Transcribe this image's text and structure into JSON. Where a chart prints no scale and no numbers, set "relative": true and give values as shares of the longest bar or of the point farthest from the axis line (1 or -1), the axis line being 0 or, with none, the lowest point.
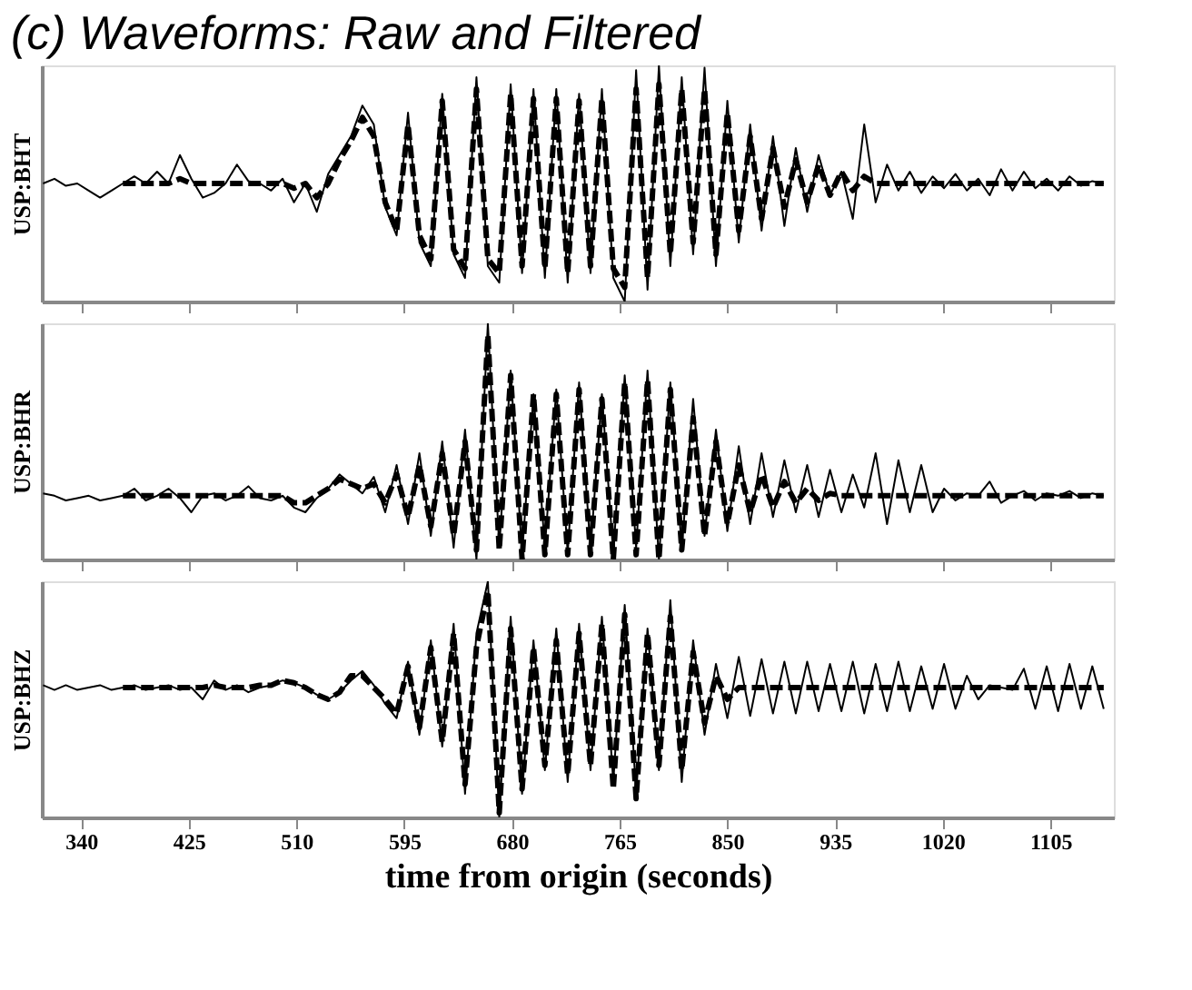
{
  "chart_data": [
    {
      "type": "line",
      "relative": true,
      "title": "(c) Waveforms: Raw and Filtered",
      "ylabel": "USP:BHT",
      "tick_labels": false,
      "xlim": [
        309,
        1155
      ],
      "xticks": [
        340,
        425,
        510,
        595,
        680,
        765,
        850,
        935,
        1020,
        1105
      ],
      "x": [
        310,
        319,
        328,
        337,
        346,
        355,
        364,
        373,
        382,
        391,
        400,
        409,
        418,
        427,
        436,
        445,
        454,
        463,
        472,
        481,
        490,
        499,
        508,
        517,
        526,
        535,
        544,
        553,
        562,
        571,
        580,
        589,
        598,
        607,
        616,
        625,
        634,
        643,
        652,
        661,
        670,
        679,
        688,
        697,
        706,
        715,
        724,
        733,
        742,
        751,
        760,
        769,
        778,
        787,
        796,
        805,
        814,
        823,
        832,
        841,
        850,
        859,
        868,
        877,
        886,
        895,
        904,
        913,
        922,
        931,
        940,
        949,
        958,
        967,
        976,
        985,
        994,
        1003,
        1012,
        1021,
        1030,
        1039,
        1048,
        1057,
        1066,
        1075,
        1084,
        1093,
        1102,
        1111,
        1120,
        1129,
        1138,
        1147
      ],
      "series": [
        {
          "color": "#000000",
          "line_style": "solid",
          "values": [
            0.5,
            0.52,
            0.49,
            0.5,
            0.47,
            0.44,
            0.47,
            0.5,
            0.53,
            0.5,
            0.55,
            0.5,
            0.62,
            0.52,
            0.44,
            0.46,
            0.5,
            0.58,
            0.51,
            0.5,
            0.47,
            0.52,
            0.42,
            0.5,
            0.38,
            0.54,
            0.62,
            0.7,
            0.83,
            0.75,
            0.4,
            0.28,
            0.8,
            0.25,
            0.15,
            0.88,
            0.2,
            0.1,
            0.95,
            0.15,
            0.08,
            0.92,
            0.12,
            0.9,
            0.1,
            0.9,
            0.08,
            0.88,
            0.12,
            0.9,
            0.1,
            0,
            0.98,
            0.05,
            1,
            0.15,
            0.95,
            0.2,
            0.99,
            0.15,
            0.85,
            0.25,
            0.75,
            0.3,
            0.7,
            0.32,
            0.65,
            0.38,
            0.62,
            0.45,
            0.55,
            0.35,
            0.75,
            0.42,
            0.58,
            0.47,
            0.55,
            0.46,
            0.53,
            0.48,
            0.54,
            0.47,
            0.52,
            0.45,
            0.56,
            0.47,
            0.55,
            0.48,
            0.52,
            0.47,
            0.53,
            0.49,
            0.51,
            0.5
          ]
        },
        {
          "color": "#000000",
          "line_style": "dashed",
          "values": [
            null,
            null,
            null,
            null,
            null,
            null,
            null,
            0.5,
            0.5,
            0.5,
            0.5,
            0.5,
            0.52,
            0.5,
            0.5,
            0.5,
            0.5,
            0.5,
            0.5,
            0.5,
            0.5,
            0.5,
            0.48,
            0.5,
            0.44,
            0.5,
            0.6,
            0.68,
            0.78,
            0.7,
            0.42,
            0.3,
            0.75,
            0.28,
            0.18,
            0.85,
            0.22,
            0.14,
            0.9,
            0.18,
            0.12,
            0.88,
            0.15,
            0.86,
            0.14,
            0.86,
            0.12,
            0.85,
            0.15,
            0.86,
            0.14,
            0.06,
            0.9,
            0.1,
            0.92,
            0.2,
            0.9,
            0.25,
            0.9,
            0.2,
            0.8,
            0.3,
            0.7,
            0.35,
            0.65,
            0.4,
            0.6,
            0.42,
            0.58,
            0.45,
            0.55,
            0.47,
            0.53,
            0.5,
            0.5,
            0.5,
            0.5,
            0.5,
            0.5,
            0.5,
            0.5,
            0.5,
            0.5,
            0.5,
            0.5,
            0.5,
            0.5,
            0.5,
            0.5,
            0.5,
            0.5,
            0.5,
            0.5,
            0.5
          ]
        }
      ]
    },
    {
      "type": "line",
      "relative": true,
      "ylabel": "USP:BHR",
      "tick_labels": false,
      "xlim": [
        309,
        1155
      ],
      "xticks": [
        340,
        425,
        510,
        595,
        680,
        765,
        850,
        935,
        1020,
        1105
      ],
      "x": [
        310,
        319,
        328,
        337,
        346,
        355,
        364,
        373,
        382,
        391,
        400,
        409,
        418,
        427,
        436,
        445,
        454,
        463,
        472,
        481,
        490,
        499,
        508,
        517,
        526,
        535,
        544,
        553,
        562,
        571,
        580,
        589,
        598,
        607,
        616,
        625,
        634,
        643,
        652,
        661,
        670,
        679,
        688,
        697,
        706,
        715,
        724,
        733,
        742,
        751,
        760,
        769,
        778,
        787,
        796,
        805,
        814,
        823,
        832,
        841,
        850,
        859,
        868,
        877,
        886,
        895,
        904,
        913,
        922,
        931,
        940,
        949,
        958,
        967,
        976,
        985,
        994,
        1003,
        1012,
        1021,
        1030,
        1039,
        1048,
        1057,
        1066,
        1075,
        1084,
        1093,
        1102,
        1111,
        1120,
        1129,
        1138,
        1147
      ],
      "series": [
        {
          "color": "#000000",
          "line_style": "solid",
          "values": [
            0.28,
            0.27,
            0.25,
            0.26,
            0.27,
            0.25,
            0.26,
            0.27,
            0.3,
            0.25,
            0.27,
            0.3,
            0.26,
            0.2,
            0.27,
            0.28,
            0.25,
            0.27,
            0.31,
            0.26,
            0.25,
            0.27,
            0.22,
            0.2,
            0.26,
            0.3,
            0.36,
            0.32,
            0.28,
            0.35,
            0.2,
            0.4,
            0.15,
            0.45,
            0.1,
            0.5,
            0.05,
            0.55,
            0,
            1,
            0.05,
            0.8,
            0.02,
            0.7,
            0.05,
            0.72,
            0.03,
            0.75,
            0.04,
            0.7,
            0.02,
            0.78,
            0.05,
            0.8,
            0,
            0.75,
            0.04,
            0.68,
            0.1,
            0.55,
            0.12,
            0.48,
            0.15,
            0.45,
            0.18,
            0.42,
            0.2,
            0.4,
            0.18,
            0.38,
            0.2,
            0.36,
            0.22,
            0.45,
            0.15,
            0.42,
            0.2,
            0.4,
            0.2,
            0.3,
            0.25,
            0.28,
            0.27,
            0.33,
            0.24,
            0.27,
            0.29,
            0.25,
            0.28,
            0.27,
            0.29,
            0.26,
            0.28,
            0.27
          ]
        },
        {
          "color": "#000000",
          "line_style": "dashed",
          "values": [
            null,
            null,
            null,
            null,
            null,
            null,
            null,
            0.27,
            0.27,
            0.27,
            0.27,
            0.27,
            0.27,
            0.27,
            0.27,
            0.27,
            0.27,
            0.27,
            0.27,
            0.27,
            0.27,
            0.27,
            0.24,
            0.24,
            0.27,
            0.3,
            0.34,
            0.32,
            0.3,
            0.32,
            0.24,
            0.36,
            0.18,
            0.4,
            0.14,
            0.45,
            0.1,
            0.5,
            0.04,
            0.95,
            0.04,
            0.78,
            0,
            0.7,
            0.02,
            0.7,
            0.02,
            0.72,
            0.02,
            0.68,
            0,
            0.75,
            0.02,
            0.76,
            0,
            0.72,
            0.04,
            0.6,
            0.1,
            0.5,
            0.15,
            0.4,
            0.2,
            0.36,
            0.22,
            0.33,
            0.24,
            0.3,
            0.25,
            0.28,
            0.27,
            0.27,
            0.27,
            0.27,
            0.27,
            0.27,
            0.27,
            0.27,
            0.27,
            0.27,
            0.27,
            0.27,
            0.27,
            0.27,
            0.27,
            0.27,
            0.27,
            0.27,
            0.27,
            0.27,
            0.27,
            0.27,
            0.27,
            0.27
          ]
        }
      ]
    },
    {
      "type": "line",
      "relative": true,
      "ylabel": "USP:BHZ",
      "xlabel": "time from origin (seconds)",
      "tick_labels": "x",
      "xlim": [
        309,
        1155
      ],
      "xticks": [
        340,
        425,
        510,
        595,
        680,
        765,
        850,
        935,
        1020,
        1105
      ],
      "x": [
        310,
        319,
        328,
        337,
        346,
        355,
        364,
        373,
        382,
        391,
        400,
        409,
        418,
        427,
        436,
        445,
        454,
        463,
        472,
        481,
        490,
        499,
        508,
        517,
        526,
        535,
        544,
        553,
        562,
        571,
        580,
        589,
        598,
        607,
        616,
        625,
        634,
        643,
        652,
        661,
        670,
        679,
        688,
        697,
        706,
        715,
        724,
        733,
        742,
        751,
        760,
        769,
        778,
        787,
        796,
        805,
        814,
        823,
        832,
        841,
        850,
        859,
        868,
        877,
        886,
        895,
        904,
        913,
        922,
        931,
        940,
        949,
        958,
        967,
        976,
        985,
        994,
        1003,
        1012,
        1021,
        1030,
        1039,
        1048,
        1057,
        1066,
        1075,
        1084,
        1093,
        1102,
        1111,
        1120,
        1129,
        1138,
        1147
      ],
      "series": [
        {
          "color": "#000000",
          "line_style": "solid",
          "values": [
            0.56,
            0.54,
            0.56,
            0.54,
            0.55,
            0.56,
            0.54,
            0.55,
            0.56,
            0.54,
            0.55,
            0.56,
            0.54,
            0.55,
            0.5,
            0.58,
            0.54,
            0.56,
            0.53,
            0.55,
            0.56,
            0.58,
            0.57,
            0.55,
            0.52,
            0.5,
            0.53,
            0.58,
            0.62,
            0.56,
            0.48,
            0.42,
            0.66,
            0.35,
            0.75,
            0.3,
            0.82,
            0.1,
            0.78,
            1,
            0,
            0.85,
            0.1,
            0.75,
            0.2,
            0.8,
            0.15,
            0.82,
            0.2,
            0.85,
            0.15,
            0.9,
            0.1,
            0.8,
            0.2,
            0.92,
            0.15,
            0.75,
            0.35,
            0.65,
            0.42,
            0.68,
            0.43,
            0.67,
            0.44,
            0.66,
            0.44,
            0.66,
            0.45,
            0.65,
            0.45,
            0.66,
            0.44,
            0.65,
            0.45,
            0.66,
            0.45,
            0.64,
            0.46,
            0.65,
            0.46,
            0.6,
            0.5,
            0.56,
            0.55,
            0.54,
            0.63,
            0.46,
            0.64,
            0.45,
            0.65,
            0.46,
            0.64,
            0.46
          ]
        },
        {
          "color": "#000000",
          "line_style": "dashed",
          "values": [
            null,
            null,
            null,
            null,
            null,
            null,
            null,
            0.55,
            0.55,
            0.55,
            0.55,
            0.55,
            0.55,
            0.55,
            0.55,
            0.56,
            0.55,
            0.55,
            0.55,
            0.56,
            0.56,
            0.58,
            0.57,
            0.55,
            0.52,
            0.5,
            0.53,
            0.6,
            0.6,
            0.55,
            0.5,
            0.44,
            0.64,
            0.38,
            0.72,
            0.32,
            0.78,
            0.14,
            0.72,
            0.96,
            0.02,
            0.8,
            0.12,
            0.72,
            0.22,
            0.75,
            0.18,
            0.78,
            0.22,
            0.82,
            0.12,
            0.86,
            0.08,
            0.78,
            0.22,
            0.85,
            0.2,
            0.7,
            0.4,
            0.6,
            0.5,
            0.55,
            0.55,
            0.55,
            0.55,
            0.55,
            0.55,
            0.55,
            0.55,
            0.55,
            0.55,
            0.55,
            0.55,
            0.55,
            0.55,
            0.55,
            0.55,
            0.55,
            0.55,
            0.55,
            0.55,
            0.55,
            0.55,
            0.55,
            0.55,
            0.55,
            0.55,
            0.55,
            0.55,
            0.55,
            0.55,
            0.55,
            0.55,
            0.55
          ]
        }
      ]
    }
  ]
}
